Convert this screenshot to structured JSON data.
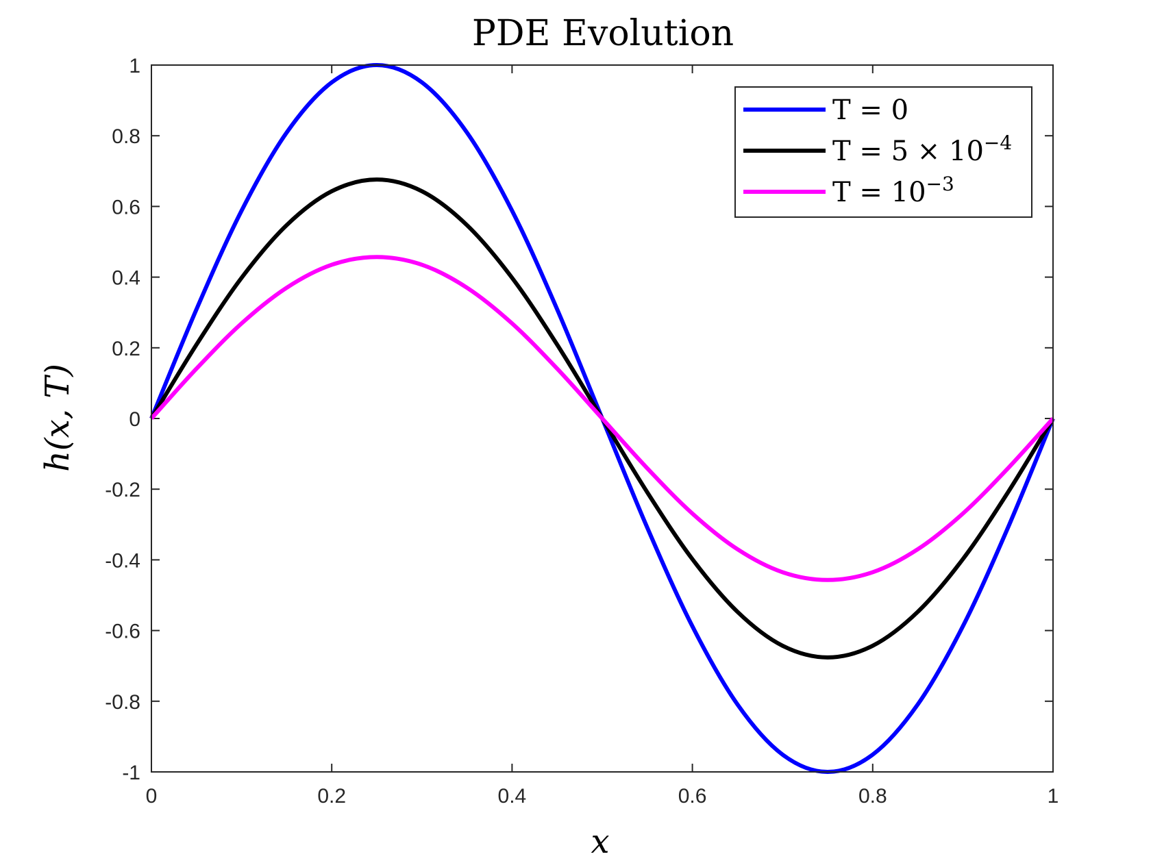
{
  "chart_data": {
    "type": "line",
    "title": "PDE Evolution",
    "xlabel": "x",
    "ylabel": "h(x, T)",
    "xlim": [
      0,
      1
    ],
    "ylim": [
      -1,
      1
    ],
    "xticks": [
      0,
      0.2,
      0.4,
      0.6,
      0.8,
      1
    ],
    "xtick_labels": [
      "0",
      "0.2",
      "0.4",
      "0.6",
      "0.8",
      "1"
    ],
    "yticks": [
      -1,
      -0.8,
      -0.6,
      -0.4,
      -0.2,
      0,
      0.2,
      0.4,
      0.6,
      0.8,
      1
    ],
    "ytick_labels": [
      "-1",
      "-0.8",
      "-0.6",
      "-0.4",
      "-0.2",
      "0",
      "0.2",
      "0.4",
      "0.6",
      "0.8",
      "1"
    ],
    "grid": false,
    "legend_position": "top-right",
    "x": [
      0,
      0.05,
      0.1,
      0.15,
      0.2,
      0.25,
      0.3,
      0.35,
      0.4,
      0.45,
      0.5,
      0.55,
      0.6,
      0.65,
      0.7,
      0.75,
      0.8,
      0.85,
      0.9,
      0.95,
      1
    ],
    "series": [
      {
        "name": "T = 0",
        "legend": {
          "base": "T = 0",
          "sup": ""
        },
        "color": "#0000ff",
        "values": [
          0,
          0.309,
          0.588,
          0.809,
          0.951,
          1.0,
          0.951,
          0.809,
          0.588,
          0.309,
          0,
          -0.309,
          -0.588,
          -0.809,
          -0.951,
          -1.0,
          -0.951,
          -0.809,
          -0.588,
          -0.309,
          0
        ]
      },
      {
        "name": "T = 5 × 10−4",
        "legend": {
          "base": "T = 5 × 10",
          "sup": "−4"
        },
        "color": "#000000",
        "values": [
          0,
          0.209,
          0.398,
          0.547,
          0.643,
          0.676,
          0.643,
          0.547,
          0.398,
          0.209,
          0,
          -0.209,
          -0.398,
          -0.547,
          -0.643,
          -0.676,
          -0.643,
          -0.547,
          -0.398,
          -0.209,
          0
        ]
      },
      {
        "name": "T = 10−3",
        "legend": {
          "base": "T = 10",
          "sup": "−3"
        },
        "color": "#ff00ff",
        "values": [
          0,
          0.141,
          0.269,
          0.37,
          0.435,
          0.457,
          0.435,
          0.37,
          0.269,
          0.141,
          0,
          -0.141,
          -0.269,
          -0.37,
          -0.435,
          -0.457,
          -0.435,
          -0.37,
          -0.269,
          -0.141,
          0
        ]
      }
    ]
  }
}
